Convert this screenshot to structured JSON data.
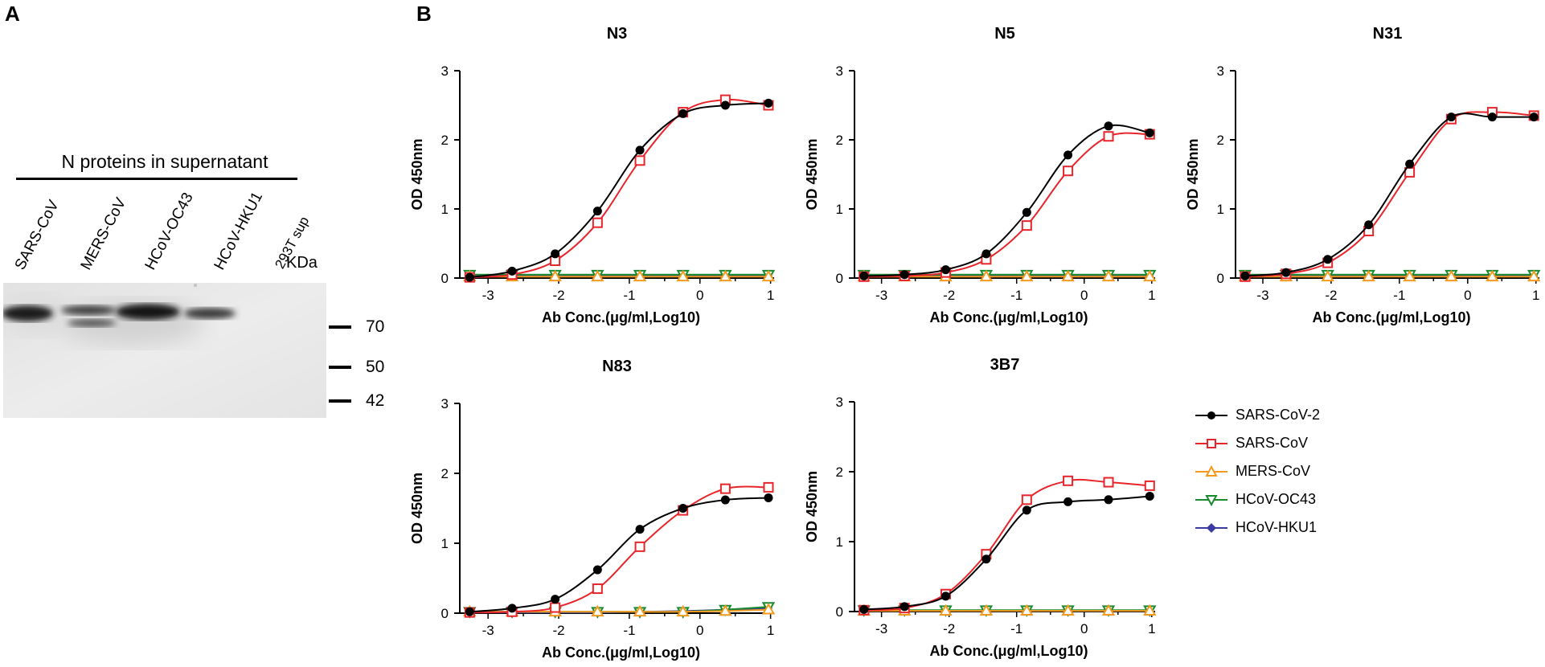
{
  "panel_a": {
    "letter": "A",
    "title": "N proteins in supernatant",
    "lanes": [
      "SARS-CoV",
      "MERS-CoV",
      "HCoV-OC43",
      "HCoV-HKU1",
      "293T sup"
    ],
    "marker_unit": "KDa",
    "markers": [
      "70",
      "50",
      "42"
    ]
  },
  "panel_b": {
    "letter": "B"
  },
  "legend": {
    "items": [
      {
        "name": "SARS-CoV-2",
        "color": "#000000",
        "marker": "filled-circle"
      },
      {
        "name": "SARS-CoV",
        "color": "#e8252b",
        "marker": "open-square"
      },
      {
        "name": "MERS-CoV",
        "color": "#f39a1e",
        "marker": "open-triangle-up"
      },
      {
        "name": "HCoV-OC43",
        "color": "#1a8a2e",
        "marker": "open-triangle-down"
      },
      {
        "name": "HCoV-HKU1",
        "color": "#3a3aa0",
        "marker": "diamond"
      }
    ]
  },
  "chart_data": [
    {
      "type": "line",
      "title": "N3",
      "xlabel": "Ab Conc.(μg/ml,Log10)",
      "ylabel": "OD 450nm",
      "xlim": [
        -3.4,
        1.05
      ],
      "ylim": [
        0,
        3
      ],
      "xticks": [
        -3,
        -2,
        -1,
        0,
        1
      ],
      "yticks": [
        0,
        1,
        2,
        3
      ],
      "x": [
        -3.26,
        -2.66,
        -2.05,
        -1.45,
        -0.85,
        -0.24,
        0.36,
        0.97
      ],
      "series": [
        {
          "name": "SARS-CoV-2",
          "values": [
            0.01,
            0.1,
            0.35,
            0.97,
            1.85,
            2.38,
            2.5,
            2.53
          ]
        },
        {
          "name": "SARS-CoV",
          "values": [
            0.01,
            0.05,
            0.25,
            0.8,
            1.7,
            2.4,
            2.58,
            2.5
          ]
        },
        {
          "name": "MERS-CoV",
          "values": [
            0.02,
            0.02,
            0.02,
            0.02,
            0.02,
            0.02,
            0.02,
            0.02
          ]
        },
        {
          "name": "HCoV-OC43",
          "values": [
            0.05,
            0.05,
            0.05,
            0.05,
            0.05,
            0.05,
            0.05,
            0.05
          ]
        },
        {
          "name": "HCoV-HKU1",
          "values": [
            0.03,
            0.03,
            0.03,
            0.03,
            0.03,
            0.03,
            0.03,
            0.03
          ]
        }
      ]
    },
    {
      "type": "line",
      "title": "N5",
      "xlabel": "Ab Conc.(μg/ml,Log10)",
      "ylabel": "OD 450nm",
      "xlim": [
        -3.4,
        1.05
      ],
      "ylim": [
        0,
        3
      ],
      "xticks": [
        -3,
        -2,
        -1,
        0,
        1
      ],
      "yticks": [
        0,
        1,
        2,
        3
      ],
      "x": [
        -3.26,
        -2.66,
        -2.05,
        -1.45,
        -0.85,
        -0.24,
        0.36,
        0.97
      ],
      "series": [
        {
          "name": "SARS-CoV-2",
          "values": [
            0.03,
            0.05,
            0.12,
            0.35,
            0.95,
            1.78,
            2.2,
            2.1
          ]
        },
        {
          "name": "SARS-CoV",
          "values": [
            0.02,
            0.03,
            0.08,
            0.27,
            0.76,
            1.55,
            2.05,
            2.08
          ]
        },
        {
          "name": "MERS-CoV",
          "values": [
            0.02,
            0.02,
            0.02,
            0.02,
            0.02,
            0.02,
            0.02,
            0.02
          ]
        },
        {
          "name": "HCoV-OC43",
          "values": [
            0.05,
            0.05,
            0.05,
            0.05,
            0.05,
            0.05,
            0.05,
            0.05
          ]
        },
        {
          "name": "HCoV-HKU1",
          "values": [
            0.03,
            0.03,
            0.03,
            0.03,
            0.03,
            0.03,
            0.03,
            0.03
          ]
        }
      ]
    },
    {
      "type": "line",
      "title": "N31",
      "xlabel": "Ab Conc.(μg/ml,Log10)",
      "ylabel": "OD 450nm",
      "xlim": [
        -3.4,
        1.05
      ],
      "ylim": [
        0,
        3
      ],
      "xticks": [
        -3,
        -2,
        -1,
        0,
        1
      ],
      "yticks": [
        0,
        1,
        2,
        3
      ],
      "x": [
        -3.26,
        -2.66,
        -2.05,
        -1.45,
        -0.85,
        -0.24,
        0.36,
        0.97
      ],
      "series": [
        {
          "name": "SARS-CoV-2",
          "values": [
            0.03,
            0.08,
            0.27,
            0.77,
            1.65,
            2.33,
            2.33,
            2.33
          ]
        },
        {
          "name": "SARS-CoV",
          "values": [
            0.02,
            0.06,
            0.22,
            0.68,
            1.53,
            2.3,
            2.4,
            2.35
          ]
        },
        {
          "name": "MERS-CoV",
          "values": [
            0.02,
            0.02,
            0.02,
            0.02,
            0.02,
            0.02,
            0.02,
            0.02
          ]
        },
        {
          "name": "HCoV-OC43",
          "values": [
            0.05,
            0.05,
            0.05,
            0.05,
            0.05,
            0.05,
            0.05,
            0.05
          ]
        },
        {
          "name": "HCoV-HKU1",
          "values": [
            0.03,
            0.03,
            0.03,
            0.03,
            0.03,
            0.03,
            0.03,
            0.03
          ]
        }
      ]
    },
    {
      "type": "line",
      "title": "N83",
      "xlabel": "Ab Conc.(μg/ml,Log10)",
      "ylabel": "OD 450nm",
      "xlim": [
        -3.4,
        1.05
      ],
      "ylim": [
        0,
        3
      ],
      "xticks": [
        -3,
        -2,
        -1,
        0,
        1
      ],
      "yticks": [
        0,
        1,
        2,
        3
      ],
      "x": [
        -3.26,
        -2.66,
        -2.05,
        -1.45,
        -0.85,
        -0.24,
        0.36,
        0.97
      ],
      "series": [
        {
          "name": "SARS-CoV-2",
          "values": [
            0.02,
            0.07,
            0.2,
            0.62,
            1.2,
            1.5,
            1.62,
            1.65
          ]
        },
        {
          "name": "SARS-CoV",
          "values": [
            0.01,
            0.02,
            0.08,
            0.35,
            0.95,
            1.47,
            1.78,
            1.8
          ]
        },
        {
          "name": "MERS-CoV",
          "values": [
            0.02,
            0.02,
            0.02,
            0.02,
            0.02,
            0.02,
            0.03,
            0.05
          ]
        },
        {
          "name": "HCoV-OC43",
          "values": [
            0.02,
            0.02,
            0.02,
            0.02,
            0.02,
            0.02,
            0.05,
            0.09
          ]
        },
        {
          "name": "HCoV-HKU1",
          "values": [
            0.01,
            0.01,
            0.01,
            0.01,
            0.02,
            0.03,
            0.05,
            0.07
          ]
        }
      ]
    },
    {
      "type": "line",
      "title": "3B7",
      "xlabel": "Ab Conc.(μg/ml,Log10)",
      "ylabel": "OD 450nm",
      "xlim": [
        -3.4,
        1.05
      ],
      "ylim": [
        0,
        3
      ],
      "xticks": [
        -3,
        -2,
        -1,
        0,
        1
      ],
      "yticks": [
        0,
        1,
        2,
        3
      ],
      "x": [
        -3.26,
        -2.66,
        -2.05,
        -1.45,
        -0.85,
        -0.24,
        0.36,
        0.97
      ],
      "series": [
        {
          "name": "SARS-CoV-2",
          "values": [
            0.03,
            0.07,
            0.22,
            0.75,
            1.45,
            1.57,
            1.6,
            1.65
          ]
        },
        {
          "name": "SARS-CoV",
          "values": [
            0.02,
            0.05,
            0.25,
            0.82,
            1.6,
            1.87,
            1.85,
            1.8
          ]
        },
        {
          "name": "MERS-CoV",
          "values": [
            0.01,
            0.01,
            0.01,
            0.01,
            0.01,
            0.01,
            0.01,
            0.01
          ]
        },
        {
          "name": "HCoV-OC43",
          "values": [
            0.02,
            0.02,
            0.02,
            0.02,
            0.02,
            0.02,
            0.02,
            0.02
          ]
        },
        {
          "name": "HCoV-HKU1",
          "values": [
            0.01,
            0.01,
            0.01,
            0.01,
            0.01,
            0.01,
            0.01,
            0.01
          ]
        }
      ]
    }
  ]
}
